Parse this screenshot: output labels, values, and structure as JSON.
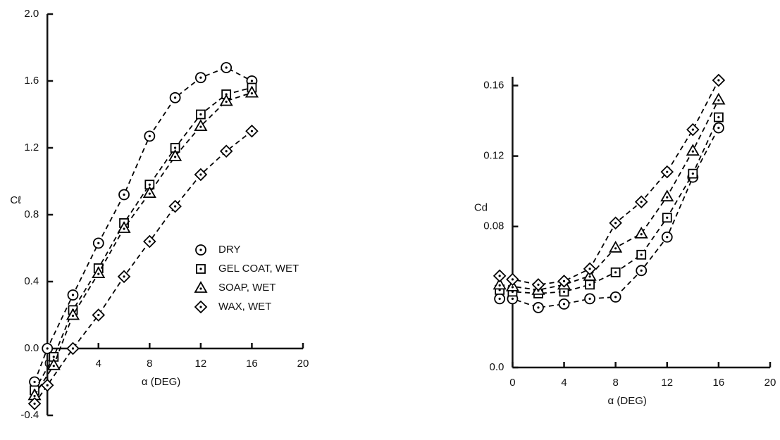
{
  "chart_data": [
    {
      "type": "line",
      "x_label": "α (DEG)",
      "y_label": "Cℓ",
      "xlim": [
        -1.5,
        20
      ],
      "xticks": [
        0,
        4,
        8,
        12,
        16,
        20
      ],
      "ylim": [
        -0.4,
        2.0
      ],
      "yticks": [
        -0.4,
        {
          "value": 0,
          "label": "0.0"
        },
        0.4,
        0.8,
        1.2,
        1.6,
        {
          "value": 2,
          "label": "2.0"
        }
      ],
      "series": [
        {
          "name": "DRY",
          "color": "#000000",
          "marker": "circle",
          "x": [
            -1,
            0,
            2,
            4,
            6,
            8,
            10,
            12,
            14,
            16
          ],
          "values": [
            -0.2,
            0,
            0.32,
            0.63,
            0.92,
            1.27,
            1.5,
            1.62,
            1.68,
            1.6
          ]
        },
        {
          "name": "GEL COAT, WET",
          "color": "#000000",
          "marker": "square",
          "x": [
            -1,
            0.5,
            2,
            4,
            6,
            8,
            10,
            12,
            14,
            16
          ],
          "values": [
            -0.25,
            -0.05,
            0.23,
            0.48,
            0.75,
            0.98,
            1.2,
            1.4,
            1.52,
            1.56
          ]
        },
        {
          "name": "SOAP, WET",
          "color": "#000000",
          "marker": "triangle",
          "x": [
            -1,
            0.5,
            2,
            4,
            6,
            8,
            10,
            12,
            14,
            16
          ],
          "values": [
            -0.28,
            -0.1,
            0.2,
            0.45,
            0.72,
            0.93,
            1.15,
            1.33,
            1.48,
            1.53
          ]
        },
        {
          "name": "WAX, WET",
          "color": "#000000",
          "marker": "diamond",
          "x": [
            -1,
            0,
            2,
            4,
            6,
            8,
            10,
            12,
            14,
            16
          ],
          "values": [
            -0.33,
            -0.22,
            0,
            0.2,
            0.43,
            0.64,
            0.85,
            1.04,
            1.18,
            1.3
          ]
        }
      ]
    },
    {
      "type": "line",
      "x_label": "α (DEG)",
      "y_label": "Cd",
      "xlim": [
        -1.5,
        20
      ],
      "xticks": [
        0,
        4,
        8,
        12,
        16,
        20
      ],
      "ylim": [
        0,
        0.165
      ],
      "yticks": [
        {
          "value": 0,
          "label": "0.0"
        },
        0.08,
        0.12,
        0.16
      ],
      "series": [
        {
          "name": "DRY",
          "color": "#000000",
          "marker": "circle",
          "x": [
            -1,
            0,
            2,
            4,
            6,
            8,
            10,
            12,
            14,
            16
          ],
          "values": [
            0.039,
            0.039,
            0.034,
            0.036,
            0.039,
            0.04,
            0.055,
            0.074,
            0.108,
            0.136
          ]
        },
        {
          "name": "GEL COAT, WET",
          "color": "#000000",
          "marker": "square",
          "x": [
            -1,
            0,
            2,
            4,
            6,
            8,
            10,
            12,
            14,
            16
          ],
          "values": [
            0.044,
            0.043,
            0.042,
            0.043,
            0.047,
            0.054,
            0.064,
            0.085,
            0.11,
            0.142
          ]
        },
        {
          "name": "SOAP, WET",
          "color": "#000000",
          "marker": "triangle",
          "x": [
            -1,
            0,
            2,
            4,
            6,
            8,
            10,
            12,
            14,
            16
          ],
          "values": [
            0.047,
            0.046,
            0.044,
            0.047,
            0.052,
            0.068,
            0.076,
            0.097,
            0.123,
            0.152
          ]
        },
        {
          "name": "WAX, WET",
          "color": "#000000",
          "marker": "diamond",
          "x": [
            -1,
            0,
            2,
            4,
            6,
            8,
            10,
            12,
            14,
            16
          ],
          "values": [
            0.052,
            0.05,
            0.047,
            0.049,
            0.056,
            0.082,
            0.094,
            0.111,
            0.135,
            0.163
          ]
        }
      ]
    }
  ]
}
